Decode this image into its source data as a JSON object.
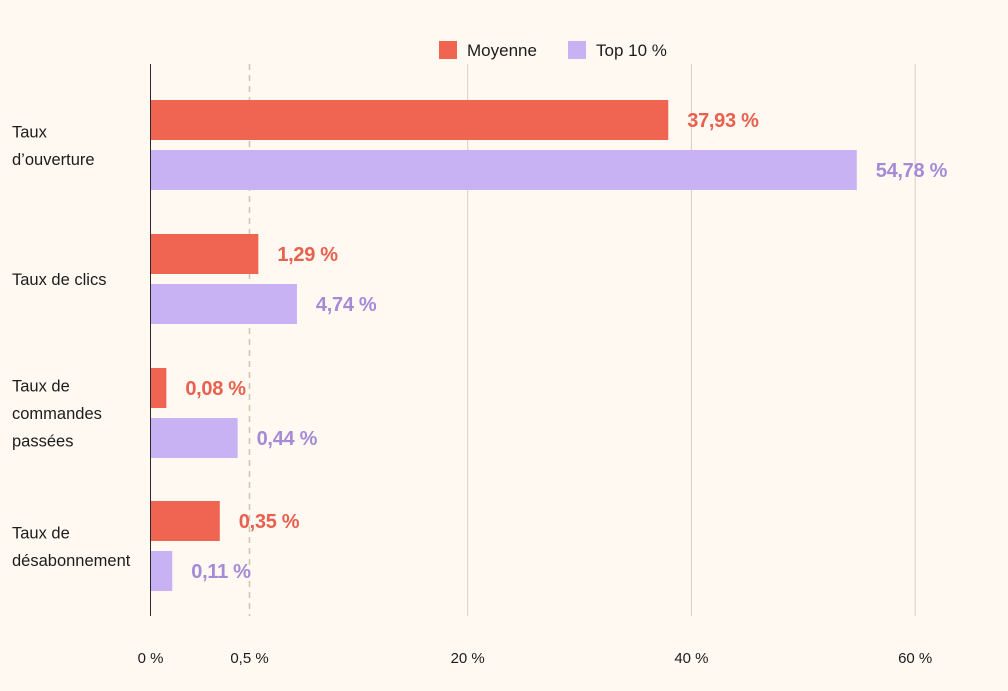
{
  "chart_data": {
    "type": "bar",
    "orientation": "horizontal",
    "categories": [
      [
        "Taux",
        "d’ouverture"
      ],
      [
        "Taux de clics"
      ],
      [
        "Taux de",
        "commandes",
        "passées"
      ],
      [
        "Taux de",
        "désabonnement"
      ]
    ],
    "series": [
      {
        "name": "Moyenne",
        "color": "#f06552",
        "label_color": "#e8604e",
        "values": [
          37.93,
          1.29,
          0.08,
          0.35
        ],
        "labels": [
          "37,93 %",
          "1,29 %",
          "0,08 %",
          "0,35 %"
        ]
      },
      {
        "name": "Top 10 %",
        "color": "#c8b2f3",
        "label_color": "#a58ad6",
        "values": [
          54.78,
          4.74,
          0.44,
          0.11
        ],
        "labels": [
          "54,78 %",
          "4,74 %",
          "0,44 %",
          "0,11 %"
        ]
      }
    ],
    "x_axis": {
      "scale": "piecewise-linear",
      "breakpoint": 0.5,
      "ticks": [
        {
          "value": 0,
          "label": "0 %"
        },
        {
          "value": 0.5,
          "label": "0,5 %",
          "dashed": true
        },
        {
          "value": 20,
          "label": "20 %"
        },
        {
          "value": 40,
          "label": "40 %"
        },
        {
          "value": 60,
          "label": "60 %"
        }
      ]
    },
    "grid": true,
    "legend": "top-center"
  }
}
